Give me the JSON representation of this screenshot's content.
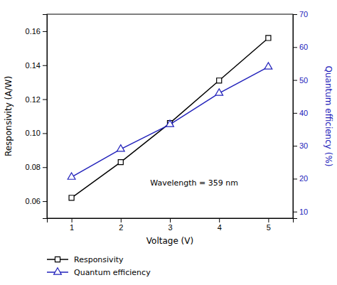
{
  "chart_data": {
    "type": "line",
    "x": [
      1,
      2,
      3,
      4,
      5
    ],
    "xlabel": "Voltage (V)",
    "ylabel": "Responsivity (A/W)",
    "y2label": "Quantum efficiency (%)",
    "annotation": "Wavelength = 359 nm",
    "series": [
      {
        "name": "Responsivity",
        "color": "#000000",
        "marker": "square",
        "line_style": "solid",
        "values": [
          0.062,
          0.083,
          0.106,
          0.131,
          0.156
        ]
      },
      {
        "name": "Quantum efficiency",
        "color": "#2222bb",
        "marker": "triangle",
        "line_style": "solid",
        "axis": "y2",
        "values": [
          20.5,
          29.0,
          36.5,
          46.0,
          54.0
        ]
      }
    ],
    "xlim": [
      0.5,
      5.5
    ],
    "xticks": [
      1,
      2,
      3,
      4,
      5
    ],
    "ylim": [
      0.05,
      0.17
    ],
    "yticks": [
      0.06,
      0.08,
      {
        "value": 0.1,
        "label": "0.10"
      },
      0.12,
      0.14,
      0.16
    ],
    "y2lim": [
      8,
      70
    ],
    "y2ticks": [
      10,
      20,
      30,
      40,
      50,
      60,
      70
    ],
    "grid": false,
    "legend": "bottom"
  }
}
